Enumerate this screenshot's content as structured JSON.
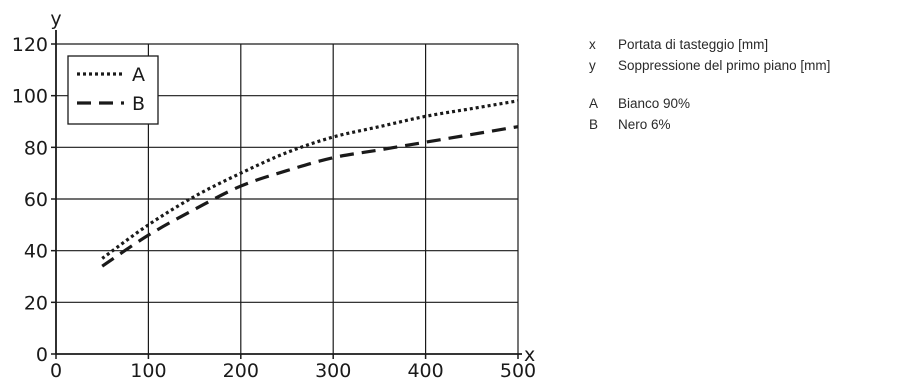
{
  "chart_data": {
    "type": "line",
    "x_axis_label": "x",
    "y_axis_label": "y",
    "xlim": [
      0,
      500
    ],
    "ylim": [
      0,
      120
    ],
    "x_ticks": [
      "0",
      "100",
      "200",
      "300",
      "400",
      "500"
    ],
    "y_ticks": [
      "0",
      "20",
      "40",
      "60",
      "80",
      "100",
      "120"
    ],
    "grid": true,
    "legend_position": "top-left",
    "series": [
      {
        "name": "A",
        "style": "dotted",
        "color": "#1a1a1a",
        "x": [
          50,
          100,
          150,
          200,
          250,
          300,
          350,
          400,
          450,
          500
        ],
        "y": [
          37,
          50,
          61,
          70,
          78,
          84,
          88,
          92,
          95,
          98
        ]
      },
      {
        "name": "B",
        "style": "dashed",
        "color": "#1a1a1a",
        "x": [
          50,
          100,
          150,
          200,
          250,
          300,
          350,
          400,
          450,
          500
        ],
        "y": [
          34,
          46,
          56,
          65,
          71,
          76,
          79,
          82,
          85,
          88
        ]
      }
    ]
  },
  "key": [
    {
      "symbol": "x",
      "text": "Portata di tasteggio [mm]"
    },
    {
      "symbol": "y",
      "text": "Soppressione del primo piano [mm]"
    },
    {
      "symbol": "A",
      "text": "Bianco 90%"
    },
    {
      "symbol": "B",
      "text": "Nero 6%"
    }
  ]
}
